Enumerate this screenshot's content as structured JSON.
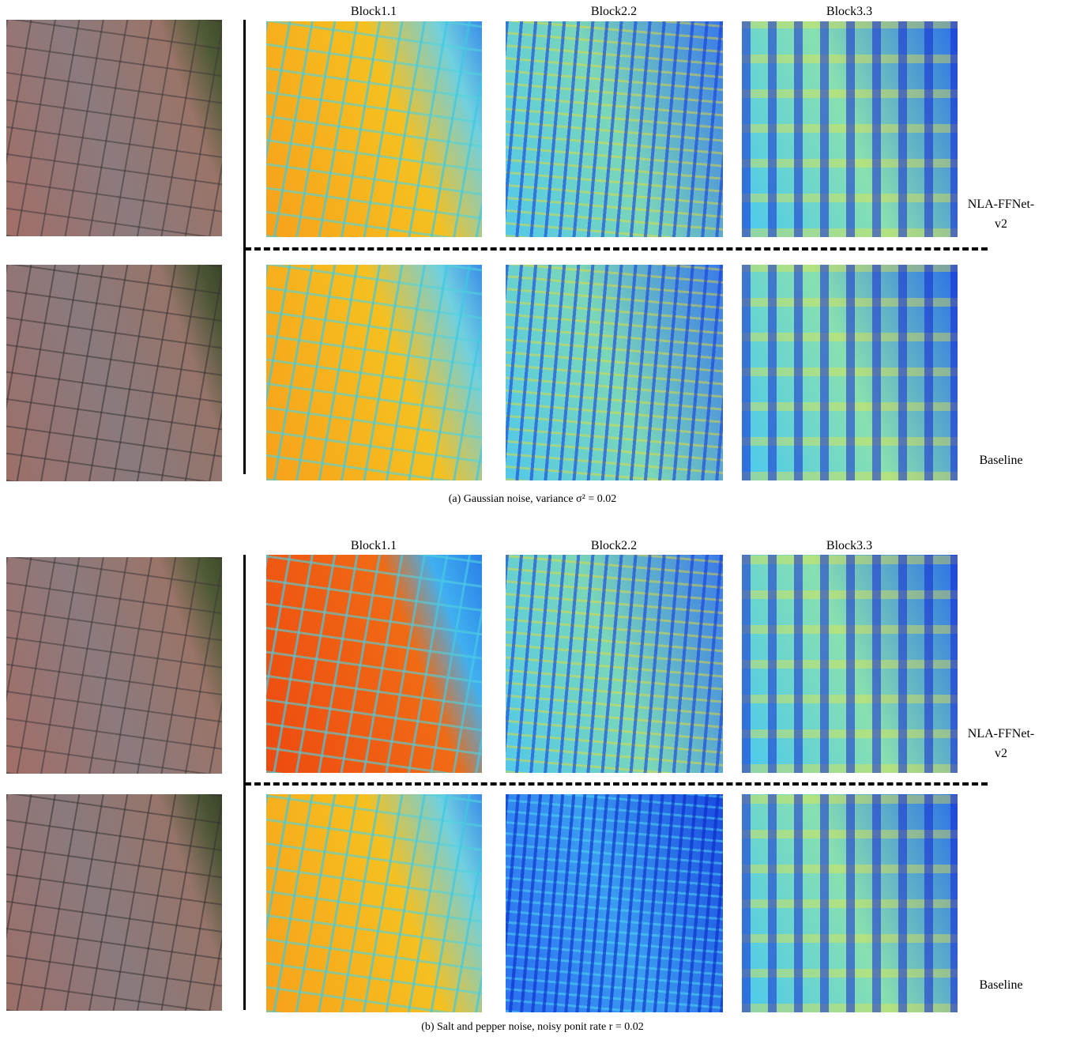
{
  "panels": [
    {
      "columns": [
        "Block1.1",
        "Block2.2",
        "Block3.3"
      ],
      "rows": [
        {
          "label": [
            "NLA-FFNet-",
            "v2"
          ]
        },
        {
          "label": [
            "Baseline"
          ]
        }
      ],
      "caption": "(a)  Gaussian noise, variance σ² = 0.02"
    },
    {
      "columns": [
        "Block1.1",
        "Block2.2",
        "Block3.3"
      ],
      "rows": [
        {
          "label": [
            "NLA-FFNet-",
            "v2"
          ]
        },
        {
          "label": [
            "Baseline"
          ]
        }
      ],
      "caption": "(b)  Salt and pepper noise, noisy ponit rate r = 0.02"
    }
  ]
}
